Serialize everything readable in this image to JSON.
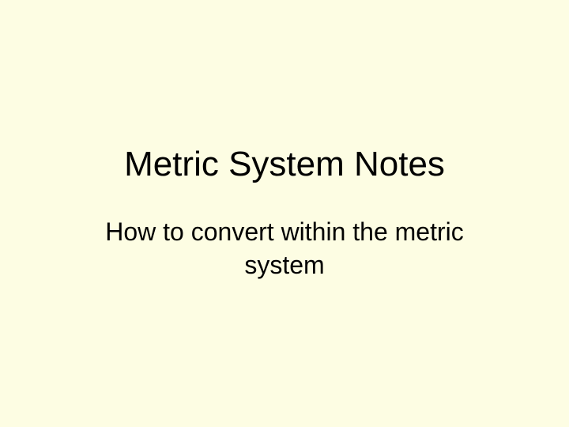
{
  "slide": {
    "background_color": "#fdfde3",
    "title": {
      "text": "Metric System Notes",
      "font_size": 44,
      "color": "#000000",
      "font_weight": "normal"
    },
    "subtitle": {
      "text": "How to convert within the metric system",
      "font_size": 32,
      "color": "#000000",
      "font_weight": "normal"
    }
  }
}
